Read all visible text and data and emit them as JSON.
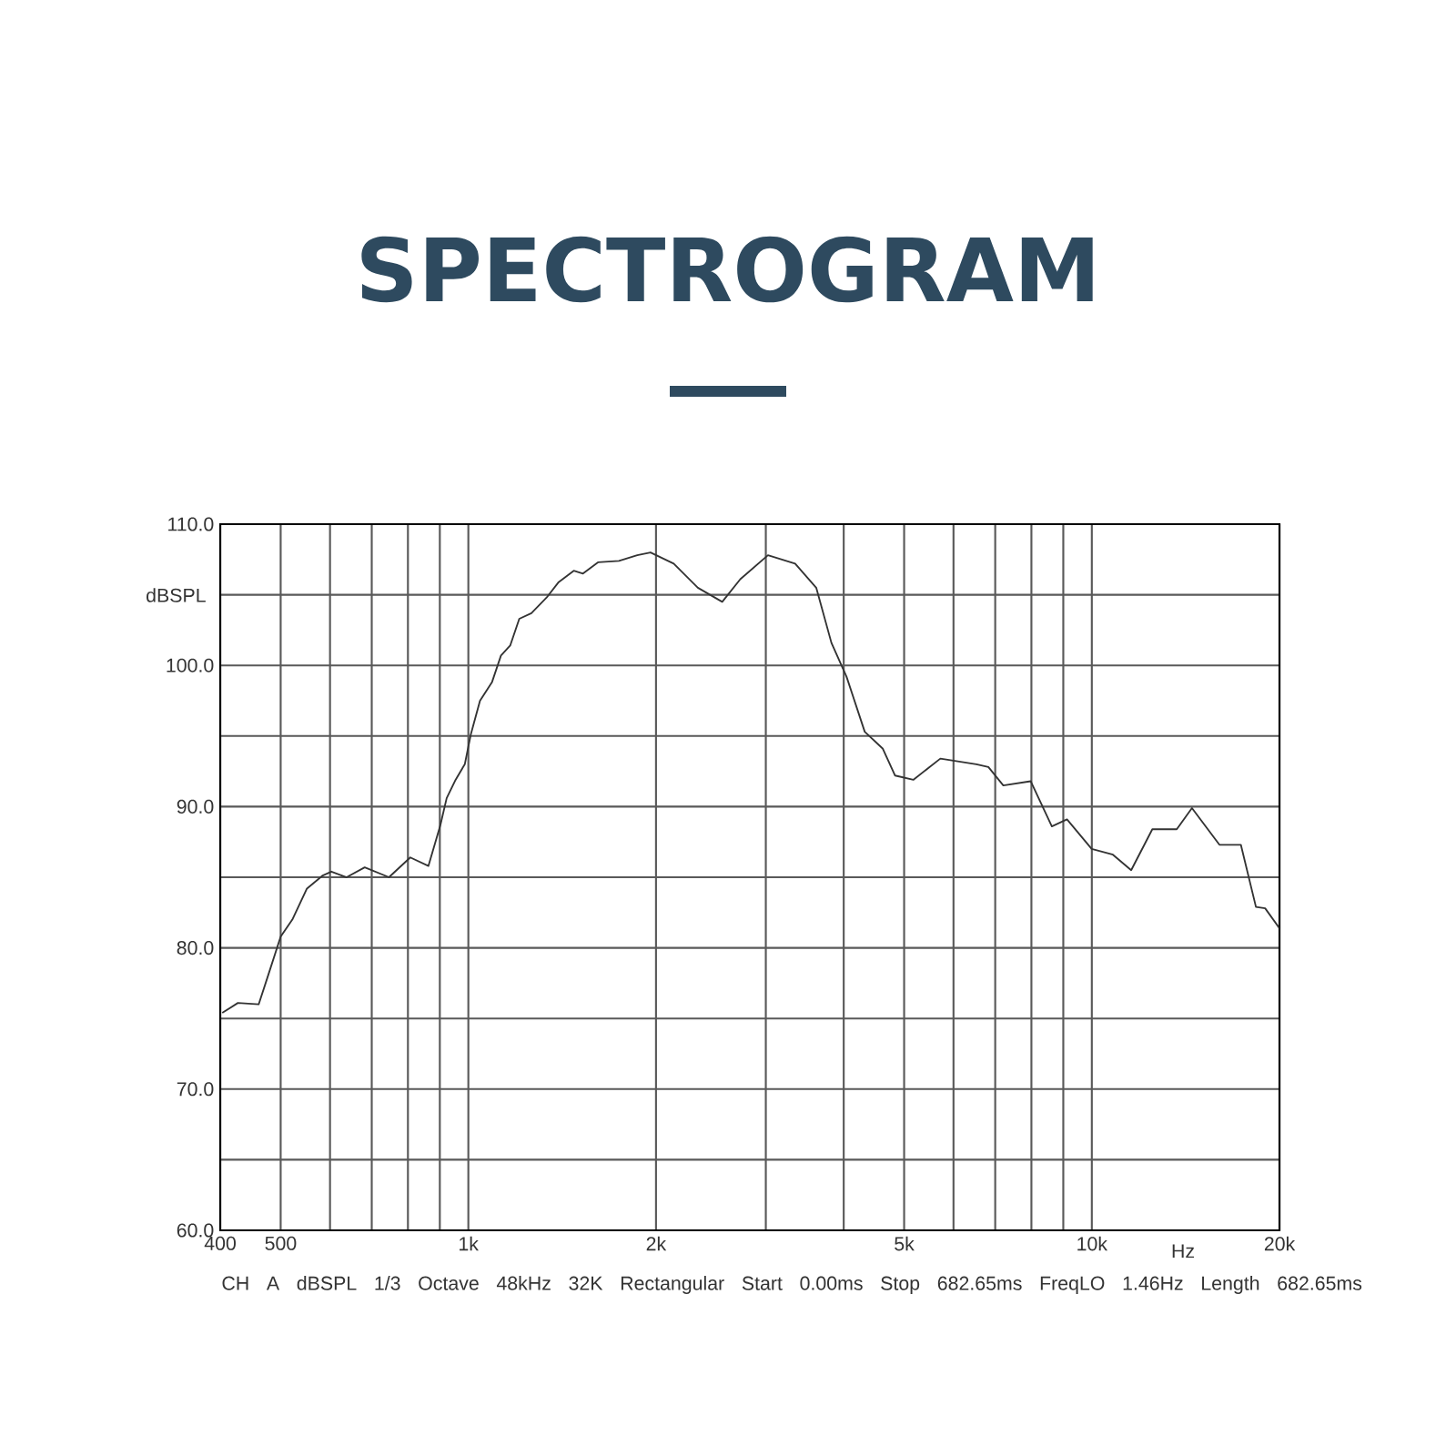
{
  "chart_data": {
    "type": "line",
    "title": "SPECTROGRAM",
    "xlabel": "Hz",
    "ylabel": "dBSPL",
    "annotations": [
      "CH A   dBSPL   1/3 Octave   48kHz   32K   Rectangular   Start 0.00ms   Stop 682.65ms   FreqLO 1.46Hz   Length 682.65ms"
    ],
    "log": "x",
    "grid": true,
    "xlim": [
      400,
      20000
    ],
    "ylim": [
      60,
      110
    ],
    "xticks": [
      400,
      500,
      {
        "value": 600,
        "label": null
      },
      {
        "value": 700,
        "label": null
      },
      {
        "value": 800,
        "label": null
      },
      {
        "value": 900,
        "label": null
      },
      {
        "value": 1000,
        "label": "1k"
      },
      {
        "value": 2000,
        "label": "2k"
      },
      {
        "value": 3000,
        "label": null
      },
      {
        "value": 4000,
        "label": null
      },
      {
        "value": 5000,
        "label": "5k"
      },
      {
        "value": 6000,
        "label": null
      },
      {
        "value": 7000,
        "label": null
      },
      {
        "value": 8000,
        "label": null
      },
      {
        "value": 9000,
        "label": null
      },
      {
        "value": 10000,
        "label": "10k"
      },
      {
        "value": 20000,
        "label": "20k"
      }
    ],
    "yticks": [
      {
        "value": 60,
        "label": "60.0"
      },
      {
        "value": 65,
        "label": null
      },
      {
        "value": 70,
        "label": "70.0"
      },
      {
        "value": 75,
        "label": null
      },
      {
        "value": 80,
        "label": "80.0"
      },
      {
        "value": 85,
        "label": null
      },
      {
        "value": 90,
        "label": "90.0"
      },
      {
        "value": 95,
        "label": null
      },
      {
        "value": 100,
        "label": "100.0"
      },
      {
        "value": 105,
        "label": null
      },
      {
        "value": 110,
        "label": "110.0"
      }
    ],
    "series": [
      {
        "color": "#333333",
        "x": [
          403,
          427,
          461,
          477,
          500,
          522,
          551,
          583,
          603,
          638,
          682,
          746,
          807,
          863,
          902,
          923,
          954,
          987,
          1009,
          1044,
          1091,
          1128,
          1167,
          1207,
          1262,
          1335,
          1396,
          1476,
          1527,
          1614,
          1744,
          1866,
          1960,
          2135,
          2334,
          2554,
          2730,
          3024,
          3343,
          3614,
          3823,
          4042,
          4323,
          4622,
          4836,
          5172,
          5716,
          6530,
          6825,
          7212,
          7979,
          8628,
          9124,
          9995,
          10810,
          11565,
          12505,
          13685,
          14475,
          16020,
          17340,
          18335,
          18970,
          19990
        ],
        "values": [
          75.4,
          76.1,
          76.0,
          78.0,
          80.8,
          82.0,
          84.2,
          85.1,
          85.4,
          85.0,
          85.7,
          85.0,
          86.4,
          85.8,
          88.7,
          90.6,
          91.9,
          93.0,
          95.1,
          97.5,
          98.8,
          100.7,
          101.4,
          103.3,
          103.7,
          104.8,
          105.9,
          106.7,
          106.5,
          107.3,
          107.4,
          107.8,
          108.0,
          107.2,
          105.5,
          104.5,
          106.1,
          107.8,
          107.2,
          105.5,
          101.6,
          99.2,
          95.3,
          94.1,
          92.2,
          91.9,
          93.4,
          93.0,
          92.8,
          91.5,
          91.8,
          88.6,
          89.1,
          87.0,
          86.6,
          85.5,
          88.4,
          88.4,
          89.9,
          87.3,
          87.3,
          82.9,
          82.8,
          81.4
        ]
      }
    ]
  }
}
